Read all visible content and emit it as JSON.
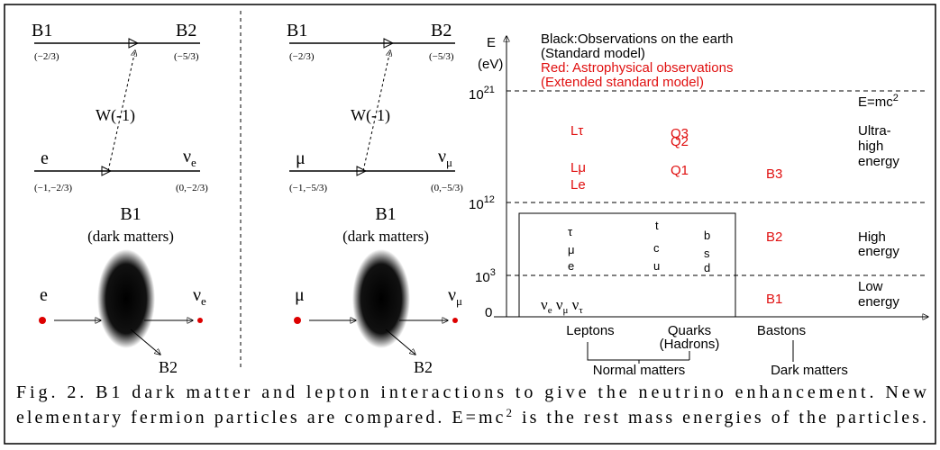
{
  "panel_electron": {
    "b1": "B1",
    "b1_charge": "(−2/3)",
    "b2": "B2",
    "b2_charge": "(−5/3)",
    "w": "W(-1)",
    "lepton": "e",
    "lepton_charge": "(−1,−2/3)",
    "neutrino": {
      "base": "ν",
      "sub": "e"
    },
    "neutrino_charge": "(0,−2/3)",
    "dm_title": "B1",
    "dm_subtitle": "(dark matters)",
    "dm_in": "e",
    "dm_out": {
      "base": "ν",
      "sub": "e"
    },
    "dm_b2": "B2"
  },
  "panel_muon": {
    "b1": "B1",
    "b1_charge": "(−2/3)",
    "b2": "B2",
    "b2_charge": "(−5/3)",
    "w": "W(-1)",
    "lepton": "μ",
    "lepton_charge": "(−1,−5/3)",
    "neutrino": {
      "base": "ν",
      "sub": "μ"
    },
    "neutrino_charge": "(0,−5/3)",
    "dm_title": "B1",
    "dm_subtitle": "(dark matters)",
    "dm_in": "μ",
    "dm_out": {
      "base": "ν",
      "sub": "μ"
    },
    "dm_b2": "B2"
  },
  "energy_chart": {
    "axis_label": "E",
    "axis_unit": "(eV)",
    "ticks": [
      {
        "base": "10",
        "exp": "21"
      },
      {
        "base": "10",
        "exp": "12"
      },
      {
        "base": "10",
        "exp": "3"
      },
      "0"
    ],
    "legend": [
      "Black:Observations on the earth",
      "(Standard model)",
      "Red: Astrophysical observations",
      "(Extended standard model)"
    ],
    "emc": {
      "base": "E=mc",
      "exp": "2"
    },
    "regions": {
      "ultra": [
        "Ultra-",
        "high",
        "energy"
      ],
      "high": [
        "High",
        "energy"
      ],
      "low": [
        "Low",
        "energy"
      ]
    },
    "astro": {
      "leptons": [
        "Lτ",
        "Lμ",
        "Le"
      ],
      "quarks": [
        "Q3",
        "Q2",
        "Q1"
      ],
      "bastons": [
        "B3",
        "B2",
        "B1"
      ]
    },
    "standard": {
      "leptons": [
        "τ",
        "μ",
        "e"
      ],
      "quarks_up": [
        "t",
        "c",
        "u"
      ],
      "quarks_down": [
        "b",
        "s",
        "d"
      ],
      "neutrinos": [
        {
          "base": "ν",
          "sub": "e"
        },
        {
          "base": "ν",
          "sub": "μ"
        },
        {
          "base": "ν",
          "sub": "τ"
        }
      ]
    },
    "columns": [
      "Leptons",
      "Quarks",
      "(Hadrons)",
      "Bastons"
    ],
    "groups": [
      "Normal matters",
      "Dark matters"
    ]
  },
  "caption": {
    "line1": "Fig. 2. B1 dark matter and lepton interactions to give the neutrino enhancement. New",
    "line2_before": "elementary fermion particles are compared. E=mc",
    "line2_sup": "2",
    "line2_after": " is the rest mass energies of the particles."
  }
}
